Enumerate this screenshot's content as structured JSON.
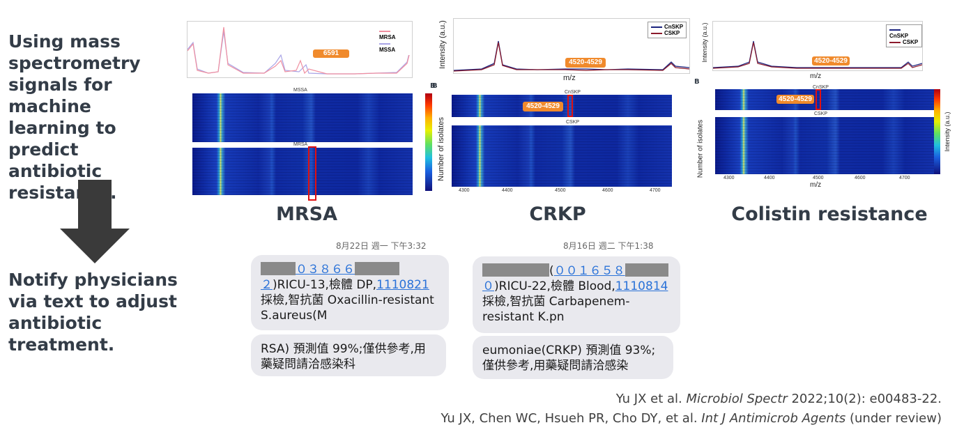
{
  "left": {
    "intro_text": "Using mass\nspectrometry\nsignals for machine\nlearning to predict\nantibiotic\nresistance.",
    "notify_text": "Notify physicians\nvia text to adjust\nantibiotic\ntreatment."
  },
  "panels": {
    "mrsa": {
      "title": "MRSA",
      "legend": [
        "MRSA",
        "MSSA"
      ],
      "tag": "6591",
      "heatmap_label_top": "MSSA",
      "heatmap_label_bottom": "MRSA"
    },
    "crkp": {
      "title": "CRKP",
      "legend": [
        "CnSKP",
        "CSKP"
      ],
      "tag_spectrum": "4520-4529",
      "tag_heatmap": "4520-4529",
      "y_label_spectrum": "Intensity (a.u.)",
      "x_label": "m/z",
      "y_label_heatmap": "Number of isolates",
      "panel_letter": "B",
      "heat_label_top": "CnSKP",
      "heat_label_mid": "CSKP",
      "ticks": [
        "4300",
        "4400",
        "4500",
        "4600",
        "4700"
      ]
    },
    "colistin": {
      "title": "Colistin resistance",
      "legend": [
        "CnSKP",
        "CSKP"
      ],
      "tag_spectrum": "4520-4529",
      "tag_heatmap": "4520-4529",
      "y_label_spectrum": "Intensity (a.u.)",
      "x_label": "m/z",
      "y_label_heatmap": "Number of isolates",
      "colorbar_label": "Intensity (a.u.)",
      "panel_letter": "B",
      "heat_label_top": "CnSKP",
      "heat_label_mid": "CSKP",
      "ticks": [
        "4300",
        "4400",
        "4500",
        "4600",
        "4700"
      ]
    }
  },
  "messages": {
    "left": {
      "timestamp": "8月22日 週一 下午3:32",
      "b1_id1": "０３８６６",
      "b1_id2": "２",
      "b1_text1": ")RICU-13,檢體 DP,",
      "b1_date": "1110821",
      "b1_text2": "採檢,智抗菌 Oxacillin-resistant S.aureus(M",
      "b2_text": "RSA) 預測值 99%;僅供參考,用藥疑問請洽感染科"
    },
    "right": {
      "timestamp": "8月16日 週二 下午1:38",
      "b1_paren": "(",
      "b1_id1": "００１６５８",
      "b1_id2": "０",
      "b1_text1": ")RICU-22,檢體 Blood,",
      "b1_date": "1110814",
      "b1_text2": "採檢,智抗菌 Carbapenem-resistant K.pn",
      "b2_text": "eumoniae(CRKP) 預測值 93%;僅供參考,用藥疑問請洽感染"
    }
  },
  "citations": {
    "line1_authors": "Yu JX et al. ",
    "line1_journal": "Microbiol Spectr",
    "line1_rest": " 2022;10(2): e00483-22.",
    "line2_authors": "Yu JX, Chen WC, Hsueh PR, Cho DY, et al. ",
    "line2_journal": "Int J Antimicrob Agents",
    "line2_rest": " (under review)"
  },
  "colors": {
    "heading": "#333c47",
    "arrow": "#3a3a3a",
    "tag": "#f08a2c",
    "highlight_box": "#e01010",
    "link": "#2a72d8",
    "bubble": "#e9e9ee",
    "mrsa_line": "#f08fa0",
    "mssa_line": "#a9a4e6",
    "cnskp_line": "#1a237e",
    "cskp_line": "#8b1a2b"
  }
}
